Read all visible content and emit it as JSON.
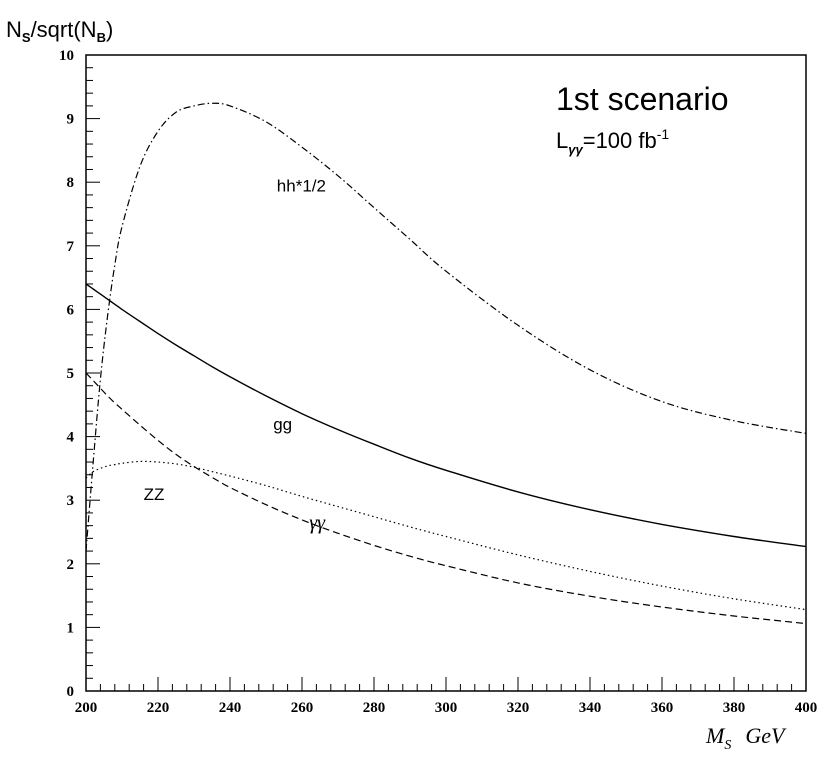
{
  "chart_data": {
    "type": "line",
    "ylabel": {
      "main": "N",
      "sub1": "S",
      "mid": "/sqrt(N",
      "sub2": "B",
      "end": ")"
    },
    "xlabel": {
      "main": "M",
      "sub": "S",
      "unit": "GeV"
    },
    "title": "1st scenario",
    "luminosity": {
      "prefix": "L",
      "sub": "γγ",
      "value": "=100 fb",
      "exp": "-1"
    },
    "xlim": [
      200,
      400
    ],
    "ylim": [
      0,
      10
    ],
    "x_ticks": [
      "200",
      "220",
      "240",
      "260",
      "280",
      "300",
      "320",
      "340",
      "360",
      "380",
      "400"
    ],
    "y_ticks": [
      "0",
      "1",
      "2",
      "3",
      "4",
      "5",
      "6",
      "7",
      "8",
      "9",
      "10"
    ],
    "grid": false,
    "x": [
      200,
      202,
      204,
      206,
      208,
      210,
      215,
      220,
      225,
      230,
      235,
      240,
      250,
      260,
      270,
      280,
      290,
      300,
      320,
      340,
      360,
      380,
      400
    ],
    "series": [
      {
        "name": "hh*1/2",
        "style": "dashdot",
        "values": [
          2.2,
          3.6,
          4.9,
          5.9,
          6.7,
          7.3,
          8.25,
          8.8,
          9.1,
          9.2,
          9.24,
          9.2,
          8.95,
          8.55,
          8.1,
          7.6,
          7.1,
          6.6,
          5.75,
          5.05,
          4.55,
          4.25,
          4.05
        ]
      },
      {
        "name": "gg",
        "style": "solid",
        "values": [
          6.4,
          6.32,
          6.24,
          6.16,
          6.08,
          6.0,
          5.81,
          5.62,
          5.44,
          5.27,
          5.1,
          4.94,
          4.64,
          4.36,
          4.11,
          3.88,
          3.66,
          3.47,
          3.13,
          2.85,
          2.62,
          2.43,
          2.27
        ]
      },
      {
        "name": "ZZ",
        "style": "dotted",
        "values": [
          3.35,
          3.45,
          3.5,
          3.54,
          3.56,
          3.58,
          3.61,
          3.6,
          3.57,
          3.52,
          3.45,
          3.38,
          3.23,
          3.06,
          2.9,
          2.74,
          2.58,
          2.43,
          2.14,
          1.88,
          1.65,
          1.45,
          1.28
        ]
      },
      {
        "name": "γγ",
        "style": "dashed",
        "values": [
          5.0,
          4.88,
          4.76,
          4.64,
          4.53,
          4.43,
          4.18,
          3.94,
          3.72,
          3.53,
          3.36,
          3.2,
          2.93,
          2.69,
          2.48,
          2.29,
          2.12,
          1.97,
          1.7,
          1.49,
          1.32,
          1.18,
          1.06
        ]
      }
    ],
    "curve_labels": [
      {
        "text": "hh*1/2",
        "x": 253,
        "y": 7.85
      },
      {
        "text": "gg",
        "x": 252,
        "y": 4.1
      },
      {
        "text": "ZZ",
        "x": 216,
        "y": 3.0
      },
      {
        "text": "γγ",
        "x": 262,
        "y": 2.55
      }
    ],
    "colors": {
      "line": "#000000",
      "background": "#ffffff"
    }
  }
}
